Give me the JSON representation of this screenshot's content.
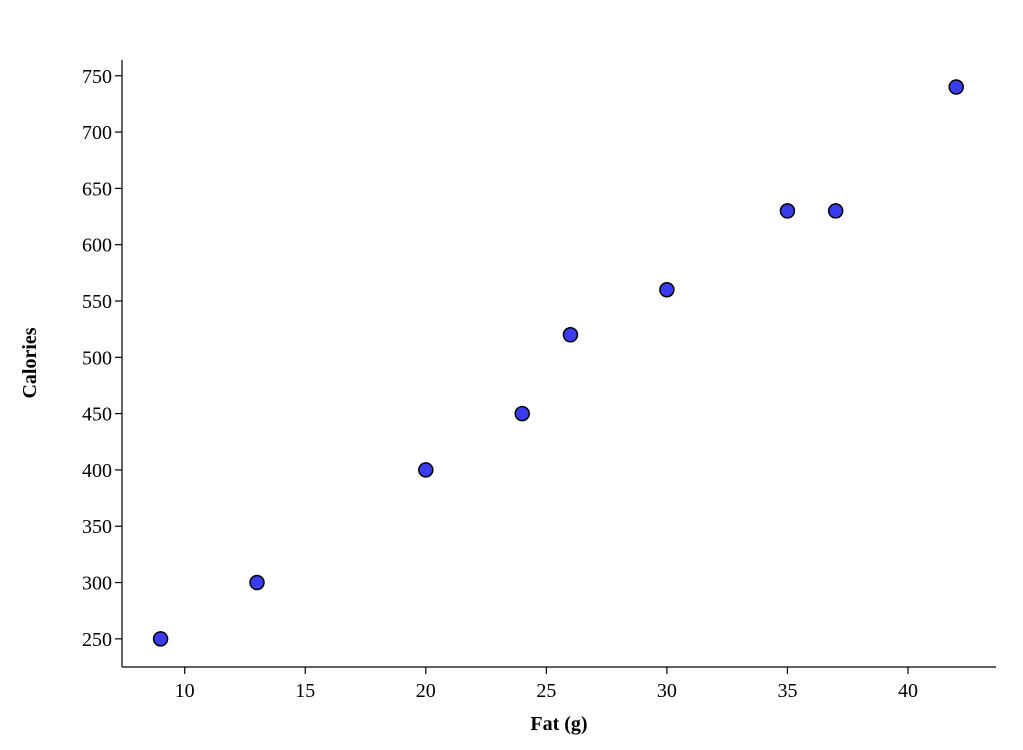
{
  "chart_data": {
    "type": "scatter",
    "x_label": "Fat (g)",
    "y_label": "Calories",
    "series": [
      {
        "color": "#3b3bf2",
        "x": [
          9,
          13,
          20,
          24,
          26,
          30,
          35,
          37,
          42
        ],
        "values": [
          250,
          300,
          400,
          450,
          520,
          560,
          630,
          630,
          740
        ]
      }
    ],
    "xlim": [
      7.4,
      43.65
    ],
    "xticks": [
      10,
      15,
      20,
      25,
      30,
      35,
      40
    ],
    "ylim": [
      225,
      764
    ],
    "yticks": [
      250,
      300,
      350,
      400,
      450,
      500,
      550,
      600,
      650,
      700,
      750
    ],
    "grid": false
  }
}
